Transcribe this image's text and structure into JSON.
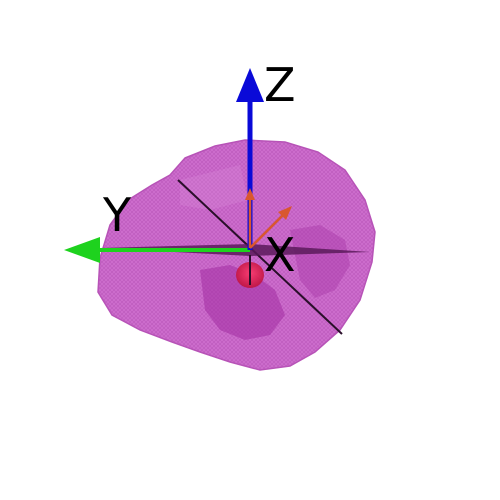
{
  "axes": {
    "x_label": "X",
    "y_label": "Y",
    "z_label": "Z"
  },
  "colors": {
    "mesh": "#c75ac7",
    "mesh_dark": "#9d1f9d",
    "x_axis": "#d9572f",
    "y_axis": "#1ed21e",
    "z_axis": "#0a0ad8",
    "marker": "#e0184a",
    "cut_line": "#2a0f2a"
  },
  "icons": [
    "mesh-rock-object",
    "axis-arrow-z",
    "axis-arrow-y",
    "axis-arrow-x",
    "origin-marker"
  ]
}
